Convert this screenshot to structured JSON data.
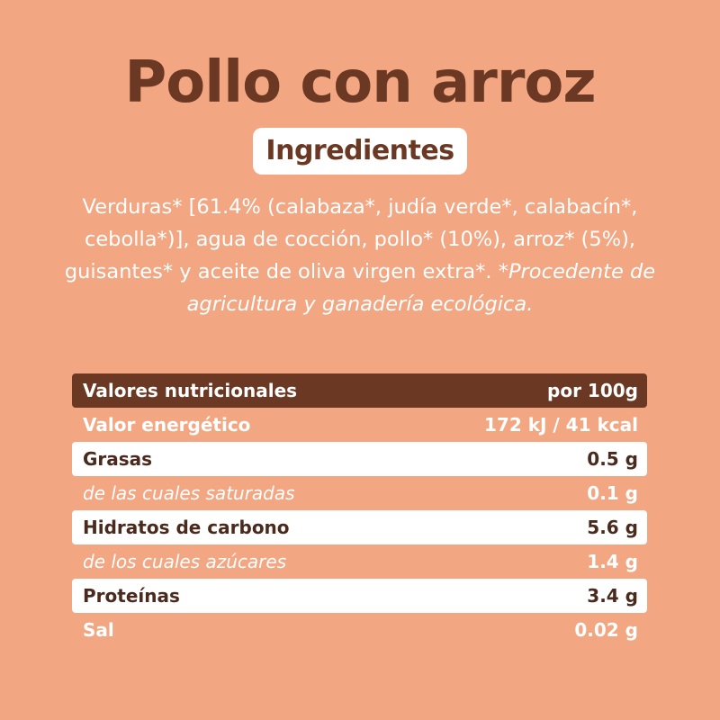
{
  "title": "Pollo con arroz",
  "ingredients_badge": "Ingredientes",
  "ingredients": {
    "text": "Verduras* [61.4% (calabaza*, judía verde*, calabacín*, cebolla*)], agua de cocción, pollo* (10%), arroz* (5%), guisantes* y aceite de oliva virgen extra*.",
    "note": "*Procedente de agricultura y ganadería ecológica."
  },
  "nutrition": {
    "header": {
      "label": "Valores nutricionales",
      "value": "por 100g"
    },
    "rows": [
      {
        "label": "Valor energético",
        "value": "172 kJ / 41 kcal"
      },
      {
        "label": "Grasas",
        "value": "0.5 g"
      },
      {
        "label": "de las cuales saturadas",
        "value": "0.1 g"
      },
      {
        "label": "Hidratos de carbono",
        "value": "5.6 g"
      },
      {
        "label": "de los cuales azúcares",
        "value": "1.4 g"
      },
      {
        "label": "Proteínas",
        "value": "3.4 g"
      },
      {
        "label": "Sal",
        "value": "0.02 g"
      }
    ]
  },
  "colors": {
    "background": "#F3A682",
    "brown": "#6B3823",
    "white": "#FFFFFF"
  }
}
